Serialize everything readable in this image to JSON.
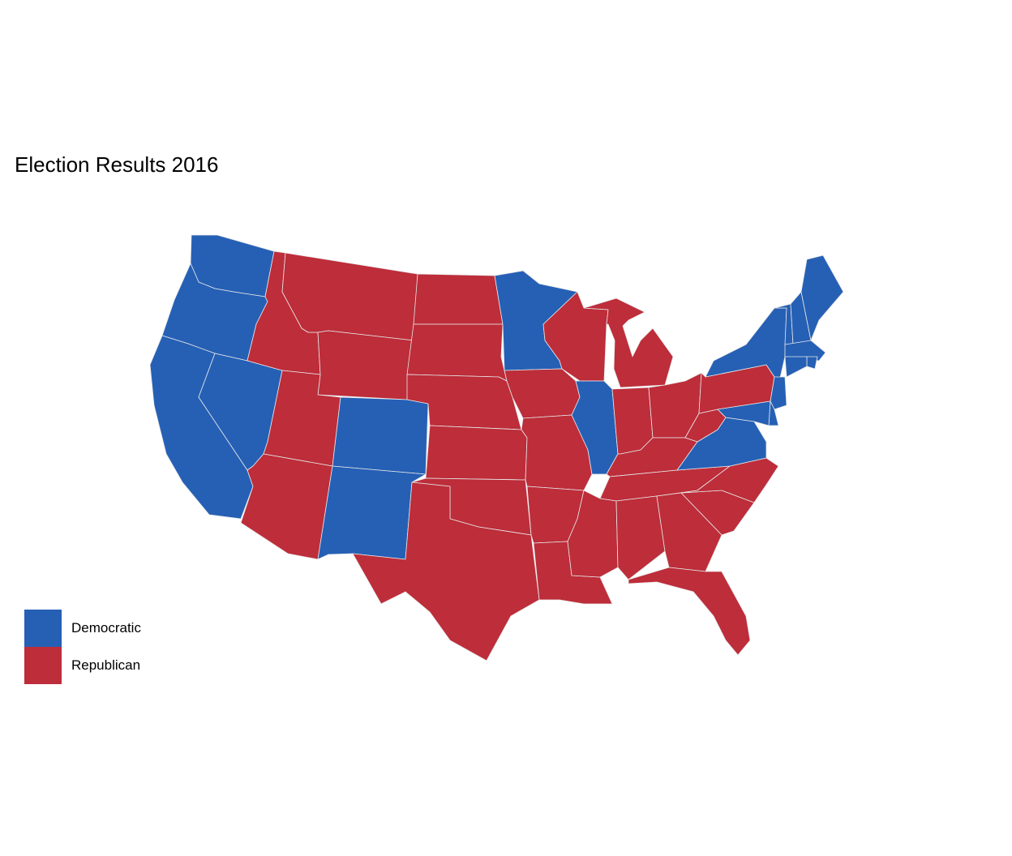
{
  "title": "Election Results 2016",
  "colors": {
    "Democratic": "#2660B5",
    "Republican": "#BD2D3A"
  },
  "legend": [
    {
      "label": "Democratic",
      "color": "#2660B5"
    },
    {
      "label": "Republican",
      "color": "#BD2D3A"
    }
  ],
  "states": [
    {
      "code": "WA",
      "party": "Democratic"
    },
    {
      "code": "OR",
      "party": "Democratic"
    },
    {
      "code": "CA",
      "party": "Democratic"
    },
    {
      "code": "NV",
      "party": "Democratic"
    },
    {
      "code": "ID",
      "party": "Republican"
    },
    {
      "code": "MT",
      "party": "Republican"
    },
    {
      "code": "WY",
      "party": "Republican"
    },
    {
      "code": "UT",
      "party": "Republican"
    },
    {
      "code": "AZ",
      "party": "Republican"
    },
    {
      "code": "CO",
      "party": "Democratic"
    },
    {
      "code": "NM",
      "party": "Democratic"
    },
    {
      "code": "ND",
      "party": "Republican"
    },
    {
      "code": "SD",
      "party": "Republican"
    },
    {
      "code": "NE",
      "party": "Republican"
    },
    {
      "code": "KS",
      "party": "Republican"
    },
    {
      "code": "OK",
      "party": "Republican"
    },
    {
      "code": "TX",
      "party": "Republican"
    },
    {
      "code": "MN",
      "party": "Democratic"
    },
    {
      "code": "IA",
      "party": "Republican"
    },
    {
      "code": "MO",
      "party": "Republican"
    },
    {
      "code": "AR",
      "party": "Republican"
    },
    {
      "code": "LA",
      "party": "Republican"
    },
    {
      "code": "WI",
      "party": "Republican"
    },
    {
      "code": "IL",
      "party": "Democratic"
    },
    {
      "code": "MI",
      "party": "Republican"
    },
    {
      "code": "IN",
      "party": "Republican"
    },
    {
      "code": "OH",
      "party": "Republican"
    },
    {
      "code": "KY",
      "party": "Republican"
    },
    {
      "code": "TN",
      "party": "Republican"
    },
    {
      "code": "MS",
      "party": "Republican"
    },
    {
      "code": "AL",
      "party": "Republican"
    },
    {
      "code": "GA",
      "party": "Republican"
    },
    {
      "code": "FL",
      "party": "Republican"
    },
    {
      "code": "SC",
      "party": "Republican"
    },
    {
      "code": "NC",
      "party": "Republican"
    },
    {
      "code": "VA",
      "party": "Democratic"
    },
    {
      "code": "WV",
      "party": "Republican"
    },
    {
      "code": "PA",
      "party": "Republican"
    },
    {
      "code": "NY",
      "party": "Democratic"
    },
    {
      "code": "VT",
      "party": "Democratic"
    },
    {
      "code": "NH",
      "party": "Democratic"
    },
    {
      "code": "ME",
      "party": "Democratic"
    },
    {
      "code": "MA",
      "party": "Democratic"
    },
    {
      "code": "RI",
      "party": "Democratic"
    },
    {
      "code": "CT",
      "party": "Democratic"
    },
    {
      "code": "NJ",
      "party": "Democratic"
    },
    {
      "code": "DE",
      "party": "Democratic"
    },
    {
      "code": "MD",
      "party": "Democratic"
    }
  ]
}
